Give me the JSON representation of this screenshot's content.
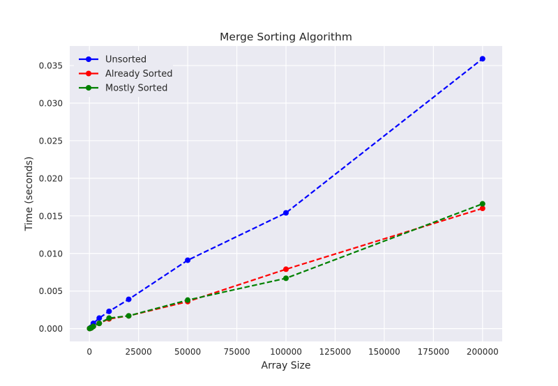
{
  "chart_data": {
    "type": "line",
    "title": "Merge Sorting Algorithm",
    "xlabel": "Array Size",
    "ylabel": "Time (seconds)",
    "xlim": [
      -10000,
      210000
    ],
    "ylim": [
      -0.0017,
      0.0376
    ],
    "xticks": [
      0,
      25000,
      50000,
      75000,
      100000,
      125000,
      150000,
      175000,
      200000
    ],
    "xtick_labels": [
      "0",
      "25000",
      "50000",
      "75000",
      "100000",
      "125000",
      "150000",
      "175000",
      "200000"
    ],
    "yticks": [
      0.0,
      0.005,
      0.01,
      0.015,
      0.02,
      0.025,
      0.03,
      0.035
    ],
    "ytick_labels": [
      "0.000",
      "0.005",
      "0.010",
      "0.015",
      "0.020",
      "0.025",
      "0.030",
      "0.035"
    ],
    "grid": true,
    "legend_position": "top-left",
    "x": [
      100,
      500,
      1000,
      2000,
      5000,
      10000,
      20000,
      50000,
      100000,
      200000
    ],
    "series": [
      {
        "name": "Unsorted",
        "color": "#0000ff",
        "values": [
          2e-05,
          0.0001,
          0.0002,
          0.0007,
          0.0014,
          0.0023,
          0.0039,
          0.0091,
          0.0154,
          0.0359
        ]
      },
      {
        "name": "Already Sorted",
        "color": "#ff0000",
        "values": [
          2e-05,
          5e-05,
          0.0001,
          0.0003,
          0.0007,
          0.0013,
          0.0017,
          0.0036,
          0.0079,
          0.016
        ]
      },
      {
        "name": "Mostly Sorted",
        "color": "#008000",
        "values": [
          2e-05,
          5e-05,
          0.0001,
          0.0003,
          0.0007,
          0.0014,
          0.0017,
          0.0038,
          0.0067,
          0.0166
        ]
      }
    ]
  }
}
